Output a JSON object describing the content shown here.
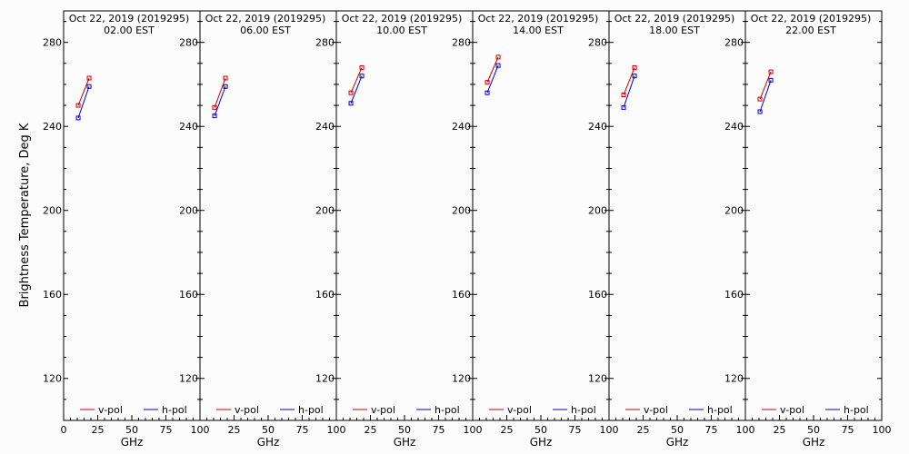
{
  "ylabel": "Brightness Temperature, Deg K",
  "chart_data": [
    {
      "type": "line",
      "title_line1": "Oct 22, 2019 (2019295)",
      "title_line2": "02.00 EST",
      "xlabel": "GHz",
      "xlim": [
        0,
        100
      ],
      "ylim": [
        100,
        295
      ],
      "xticks": [
        "0",
        "25",
        "50",
        "75",
        "100"
      ],
      "yticks": [
        "120",
        "160",
        "200",
        "240",
        "280"
      ],
      "series": [
        {
          "name": "v-pol",
          "color": "#cc0000",
          "x": [
            10.7,
            18.7
          ],
          "y": [
            250,
            263
          ]
        },
        {
          "name": "h-pol",
          "color": "#0000cc",
          "x": [
            10.7,
            18.7
          ],
          "y": [
            244,
            259
          ]
        }
      ]
    },
    {
      "type": "line",
      "title_line1": "Oct 22, 2019 (2019295)",
      "title_line2": "06.00 EST",
      "xlabel": "GHz",
      "xlim": [
        0,
        100
      ],
      "ylim": [
        100,
        295
      ],
      "xticks": [
        "0",
        "25",
        "50",
        "75",
        "100"
      ],
      "yticks": [
        "120",
        "160",
        "200",
        "240",
        "280"
      ],
      "series": [
        {
          "name": "v-pol",
          "color": "#cc0000",
          "x": [
            10.7,
            18.7
          ],
          "y": [
            249,
            263
          ]
        },
        {
          "name": "h-pol",
          "color": "#0000cc",
          "x": [
            10.7,
            18.7
          ],
          "y": [
            245,
            259
          ]
        }
      ]
    },
    {
      "type": "line",
      "title_line1": "Oct 22, 2019 (2019295)",
      "title_line2": "10.00 EST",
      "xlabel": "GHz",
      "xlim": [
        0,
        100
      ],
      "ylim": [
        100,
        295
      ],
      "xticks": [
        "0",
        "25",
        "50",
        "75",
        "100"
      ],
      "yticks": [
        "120",
        "160",
        "200",
        "240",
        "280"
      ],
      "series": [
        {
          "name": "v-pol",
          "color": "#cc0000",
          "x": [
            10.7,
            18.7
          ],
          "y": [
            256,
            268
          ]
        },
        {
          "name": "h-pol",
          "color": "#0000cc",
          "x": [
            10.7,
            18.7
          ],
          "y": [
            251,
            264
          ]
        }
      ]
    },
    {
      "type": "line",
      "title_line1": "Oct 22, 2019 (2019295)",
      "title_line2": "14.00 EST",
      "xlabel": "GHz",
      "xlim": [
        0,
        100
      ],
      "ylim": [
        100,
        295
      ],
      "xticks": [
        "0",
        "25",
        "50",
        "75",
        "100"
      ],
      "yticks": [
        "120",
        "160",
        "200",
        "240",
        "280"
      ],
      "series": [
        {
          "name": "v-pol",
          "color": "#cc0000",
          "x": [
            10.7,
            18.7
          ],
          "y": [
            261,
            273
          ]
        },
        {
          "name": "h-pol",
          "color": "#0000cc",
          "x": [
            10.7,
            18.7
          ],
          "y": [
            256,
            269
          ]
        }
      ]
    },
    {
      "type": "line",
      "title_line1": "Oct 22, 2019 (2019295)",
      "title_line2": "18.00 EST",
      "xlabel": "GHz",
      "xlim": [
        0,
        100
      ],
      "ylim": [
        100,
        295
      ],
      "xticks": [
        "0",
        "25",
        "50",
        "75",
        "100"
      ],
      "yticks": [
        "120",
        "160",
        "200",
        "240",
        "280"
      ],
      "series": [
        {
          "name": "v-pol",
          "color": "#cc0000",
          "x": [
            10.7,
            18.7
          ],
          "y": [
            255,
            268
          ]
        },
        {
          "name": "h-pol",
          "color": "#0000cc",
          "x": [
            10.7,
            18.7
          ],
          "y": [
            249,
            264
          ]
        }
      ]
    },
    {
      "type": "line",
      "title_line1": "Oct 22, 2019 (2019295)",
      "title_line2": "22.00 EST",
      "xlabel": "GHz",
      "xlim": [
        0,
        100
      ],
      "ylim": [
        100,
        295
      ],
      "xticks": [
        "0",
        "25",
        "50",
        "75",
        "100"
      ],
      "yticks": [
        "120",
        "160",
        "200",
        "240",
        "280"
      ],
      "series": [
        {
          "name": "v-pol",
          "color": "#cc0000",
          "x": [
            10.7,
            18.7
          ],
          "y": [
            253,
            266
          ]
        },
        {
          "name": "h-pol",
          "color": "#0000cc",
          "x": [
            10.7,
            18.7
          ],
          "y": [
            247,
            262
          ]
        }
      ]
    }
  ]
}
